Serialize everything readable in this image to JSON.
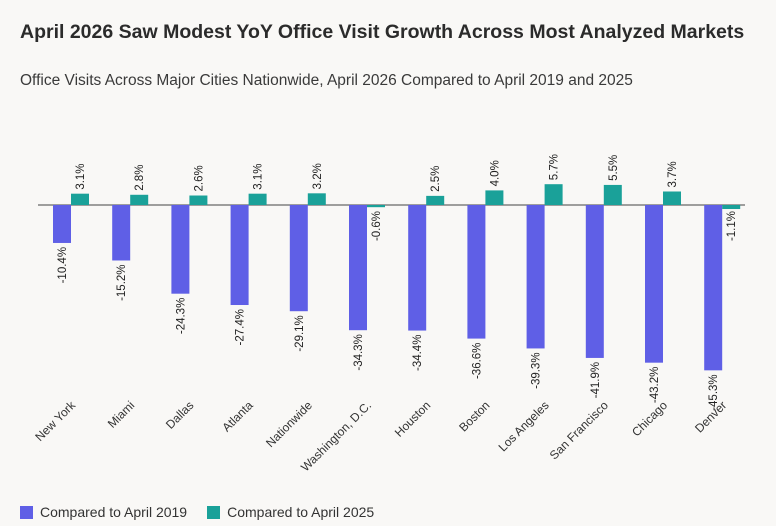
{
  "header": {
    "title": "April 2026 Saw Modest YoY Office Visit Growth Across Most Analyzed Markets",
    "subtitle": "Office Visits Across Major Cities Nationwide, April 2026 Compared to April 2019 and 2025"
  },
  "colors": {
    "series_2019": "#5f5fe6",
    "series_2025": "#1aa199",
    "axis": "#444444",
    "background": "#f9f8f6"
  },
  "chart_data": {
    "type": "bar",
    "categories": [
      "New York",
      "Miami",
      "Dallas",
      "Atlanta",
      "Nationwide",
      "Washington, D.C.",
      "Houston",
      "Boston",
      "Los Angeles",
      "San Francisco",
      "Chicago",
      "Denver"
    ],
    "series": [
      {
        "name": "Compared to April 2019",
        "values": [
          -10.4,
          -15.2,
          -24.3,
          -27.4,
          -29.1,
          -34.3,
          -34.4,
          -36.6,
          -39.3,
          -41.9,
          -43.2,
          -45.3
        ],
        "labels": [
          "-10.4%",
          "-15.2%",
          "-24.3%",
          "-27.4%",
          "-29.1%",
          "-34.3%",
          "-34.4%",
          "-36.6%",
          "-39.3%",
          "-41.9%",
          "-43.2%",
          "-45.3%"
        ]
      },
      {
        "name": "Compared to April 2025",
        "values": [
          3.1,
          2.8,
          2.6,
          3.1,
          3.2,
          -0.6,
          2.5,
          4.0,
          5.7,
          5.5,
          3.7,
          -1.1
        ],
        "labels": [
          "3.1%",
          "2.8%",
          "2.6%",
          "3.1%",
          "3.2%",
          "-0.6%",
          "2.5%",
          "4.0%",
          "5.7%",
          "5.5%",
          "3.7%",
          "-1.1%"
        ]
      }
    ],
    "legend_position": "bottom-left",
    "grid": false
  }
}
